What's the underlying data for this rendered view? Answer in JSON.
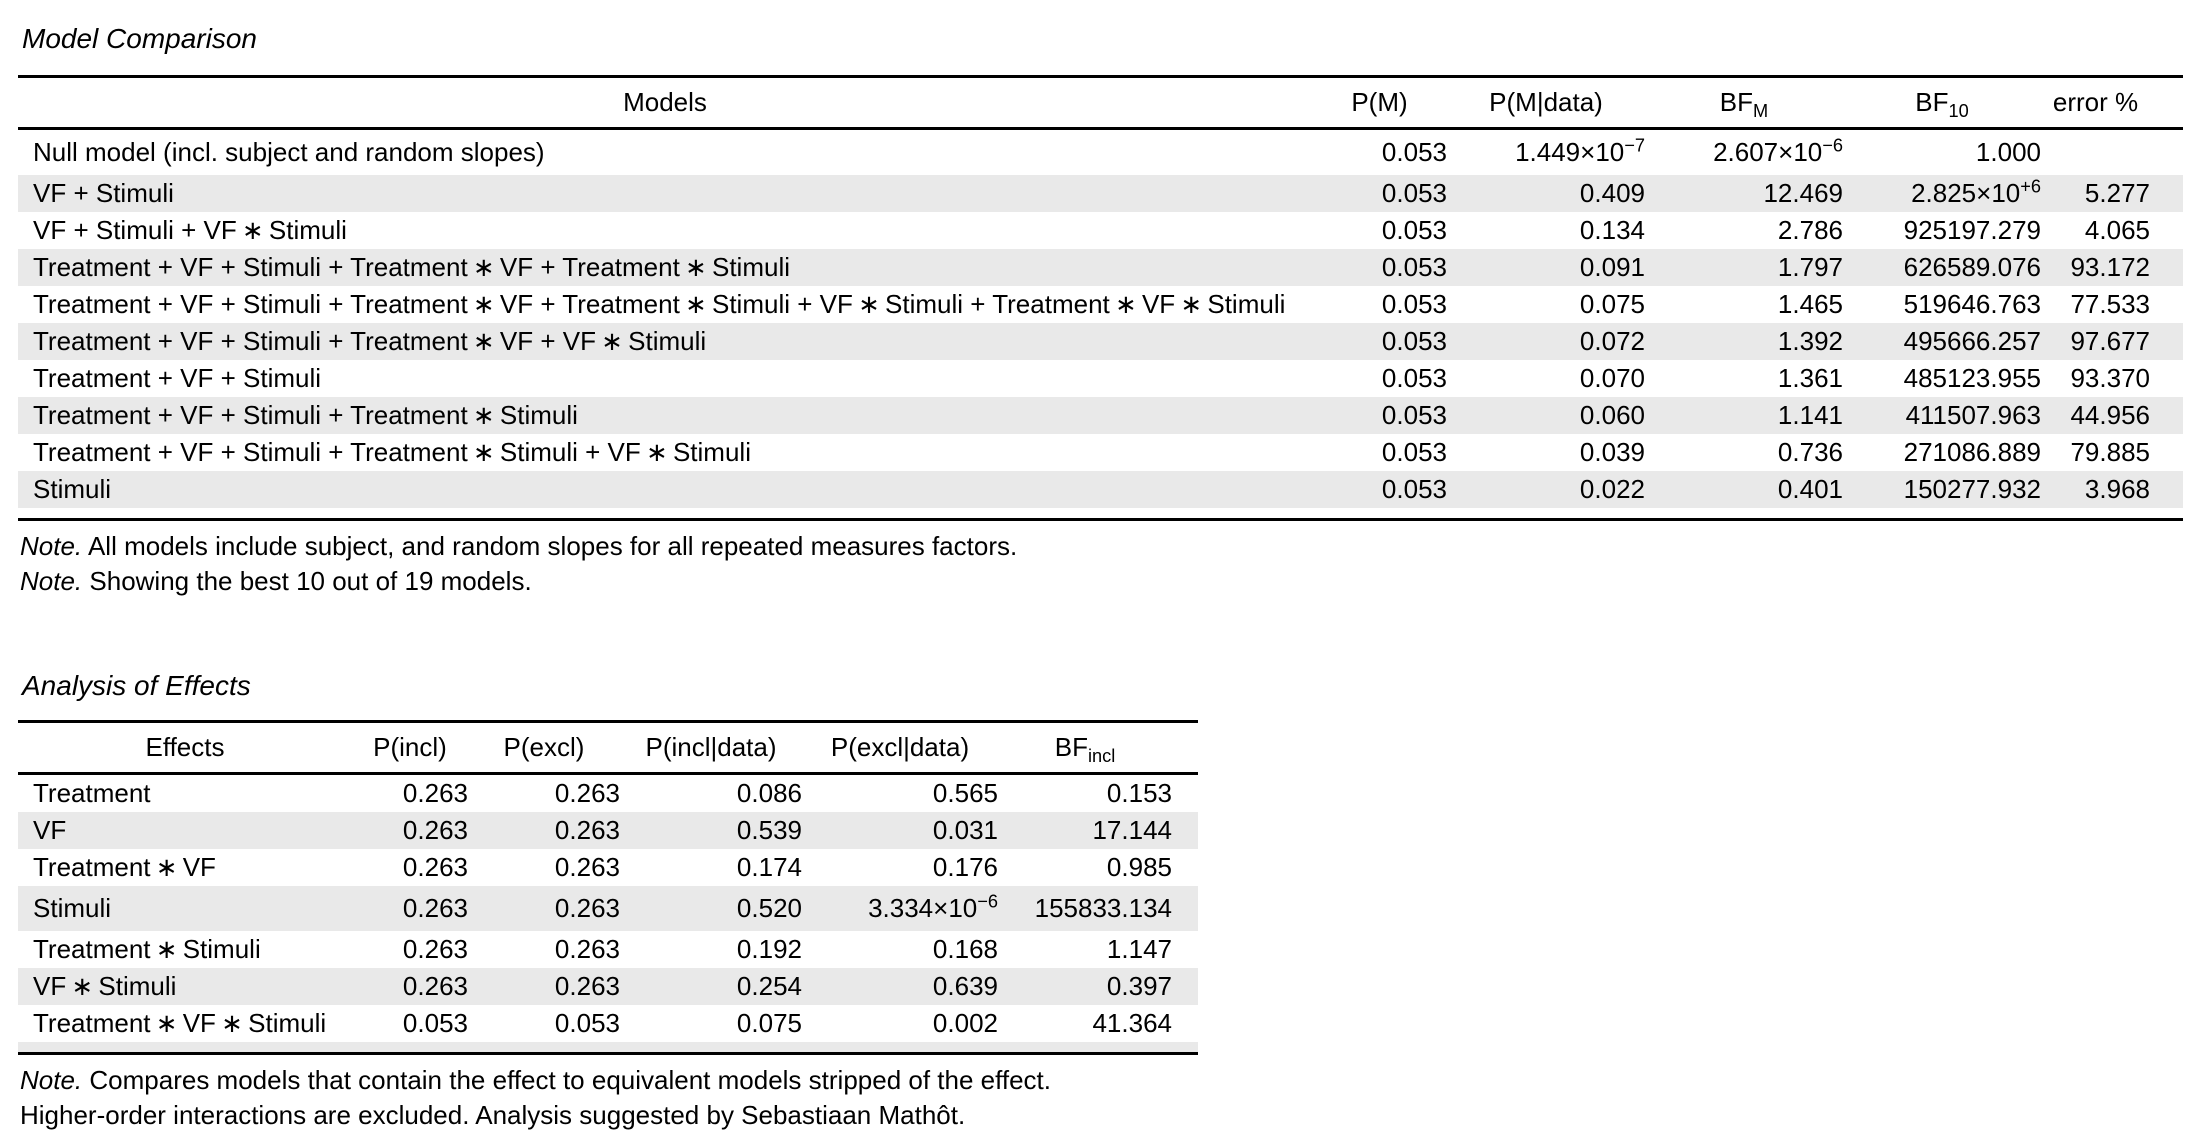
{
  "colors": {
    "row_stripe": "#e9e9e9",
    "rule": "#000000",
    "text": "#000000"
  },
  "model_comparison": {
    "title": "Model Comparison",
    "columns": [
      "Models",
      "P(M)",
      "P(M|data)",
      [
        {
          "t": "BF"
        },
        {
          "sub": "M"
        }
      ],
      [
        {
          "t": "BF"
        },
        {
          "sub": "10"
        }
      ],
      "error %"
    ],
    "rows": [
      [
        "Null model (incl. subject and random slopes)",
        "0.053",
        [
          {
            "t": "1.449×10"
          },
          {
            "sup": "−7"
          }
        ],
        [
          {
            "t": "2.607×10"
          },
          {
            "sup": "−6"
          }
        ],
        "1.000",
        ""
      ],
      [
        "VF + Stimuli",
        "0.053",
        "0.409",
        "12.469",
        [
          {
            "t": "2.825×10"
          },
          {
            "sup": "+6"
          }
        ],
        "5.277"
      ],
      [
        "VF + Stimuli + VF ∗ Stimuli",
        "0.053",
        "0.134",
        "2.786",
        "925197.279",
        "4.065"
      ],
      [
        "Treatment + VF + Stimuli + Treatment ∗ VF + Treatment ∗ Stimuli",
        "0.053",
        "0.091",
        "1.797",
        "626589.076",
        "93.172"
      ],
      [
        "Treatment + VF + Stimuli + Treatment ∗ VF + Treatment ∗ Stimuli + VF ∗ Stimuli + Treatment ∗ VF ∗ Stimuli",
        "0.053",
        "0.075",
        "1.465",
        "519646.763",
        "77.533"
      ],
      [
        "Treatment + VF + Stimuli + Treatment ∗ VF + VF ∗ Stimuli",
        "0.053",
        "0.072",
        "1.392",
        "495666.257",
        "97.677"
      ],
      [
        "Treatment + VF + Stimuli",
        "0.053",
        "0.070",
        "1.361",
        "485123.955",
        "93.370"
      ],
      [
        "Treatment + VF + Stimuli + Treatment ∗ Stimuli",
        "0.053",
        "0.060",
        "1.141",
        "411507.963",
        "44.956"
      ],
      [
        "Treatment + VF + Stimuli + Treatment ∗ Stimuli + VF ∗ Stimuli",
        "0.053",
        "0.039",
        "0.736",
        "271086.889",
        "79.885"
      ],
      [
        "Stimuli",
        "0.053",
        "0.022",
        "0.401",
        "150277.932",
        "3.968"
      ]
    ],
    "notes": [
      {
        "prefix": "Note.",
        "text": "All models include subject, and random slopes for all repeated measures factors."
      },
      {
        "prefix": "Note.",
        "text": "Showing the best 10 out of 19 models."
      }
    ]
  },
  "analysis_of_effects": {
    "title": "Analysis of Effects",
    "columns": [
      "Effects",
      "P(incl)",
      "P(excl)",
      "P(incl|data)",
      "P(excl|data)",
      [
        {
          "t": "BF"
        },
        {
          "sub": "incl"
        }
      ]
    ],
    "rows": [
      [
        "Treatment",
        "0.263",
        "0.263",
        "0.086",
        "0.565",
        "0.153"
      ],
      [
        "VF",
        "0.263",
        "0.263",
        "0.539",
        "0.031",
        "17.144"
      ],
      [
        "Treatment ∗ VF",
        "0.263",
        "0.263",
        "0.174",
        "0.176",
        "0.985"
      ],
      [
        "Stimuli",
        "0.263",
        "0.263",
        "0.520",
        [
          {
            "t": "3.334×10"
          },
          {
            "sup": "−6"
          }
        ],
        "155833.134"
      ],
      [
        "Treatment ∗ Stimuli",
        "0.263",
        "0.263",
        "0.192",
        "0.168",
        "1.147"
      ],
      [
        "VF ∗ Stimuli",
        "0.263",
        "0.263",
        "0.254",
        "0.639",
        "0.397"
      ],
      [
        "Treatment ∗ VF ∗ Stimuli",
        "0.053",
        "0.053",
        "0.075",
        "0.002",
        "41.364"
      ]
    ],
    "notes": [
      {
        "prefix": "Note.",
        "text": "Compares models that contain the effect to equivalent models stripped of the effect."
      },
      {
        "prefix": "",
        "text": "Higher-order interactions are excluded. Analysis suggested by Sebastiaan Mathôt."
      }
    ]
  }
}
